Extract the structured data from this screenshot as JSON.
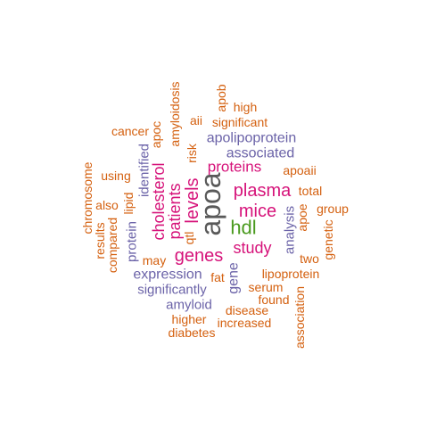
{
  "colors": {
    "gray": "#595959",
    "green": "#4a9a1e",
    "magenta": "#d6137a",
    "purple": "#6b63a8",
    "orange": "#d4600f"
  },
  "words": [
    {
      "text": "apoa",
      "color": "gray"
    },
    {
      "text": "hdl",
      "color": "green"
    },
    {
      "text": "mice",
      "color": "magenta"
    },
    {
      "text": "plasma",
      "color": "magenta"
    },
    {
      "text": "levels",
      "color": "magenta"
    },
    {
      "text": "genes",
      "color": "magenta"
    },
    {
      "text": "study",
      "color": "magenta"
    },
    {
      "text": "patients",
      "color": "magenta"
    },
    {
      "text": "cholesterol",
      "color": "magenta"
    },
    {
      "text": "proteins",
      "color": "magenta"
    },
    {
      "text": "apolipoprotein",
      "color": "purple"
    },
    {
      "text": "associated",
      "color": "purple"
    },
    {
      "text": "expression",
      "color": "purple"
    },
    {
      "text": "gene",
      "color": "purple"
    },
    {
      "text": "identified",
      "color": "purple"
    },
    {
      "text": "significantly",
      "color": "purple"
    },
    {
      "text": "amyloid",
      "color": "purple"
    },
    {
      "text": "protein",
      "color": "purple"
    },
    {
      "text": "analysis",
      "color": "purple"
    },
    {
      "text": "apoaii",
      "color": "orange"
    },
    {
      "text": "lipoprotein",
      "color": "orange"
    },
    {
      "text": "serum",
      "color": "orange"
    },
    {
      "text": "disease",
      "color": "orange"
    },
    {
      "text": "amyloidosis",
      "color": "orange"
    },
    {
      "text": "significant",
      "color": "orange"
    },
    {
      "text": "increased",
      "color": "orange"
    },
    {
      "text": "higher",
      "color": "orange"
    },
    {
      "text": "diabetes",
      "color": "orange"
    },
    {
      "text": "association",
      "color": "orange"
    },
    {
      "text": "genetic",
      "color": "orange"
    },
    {
      "text": "group",
      "color": "orange"
    },
    {
      "text": "total",
      "color": "orange"
    },
    {
      "text": "apoe",
      "color": "orange"
    },
    {
      "text": "two",
      "color": "orange"
    },
    {
      "text": "found",
      "color": "orange"
    },
    {
      "text": "fat",
      "color": "orange"
    },
    {
      "text": "may",
      "color": "orange"
    },
    {
      "text": "compared",
      "color": "orange"
    },
    {
      "text": "results",
      "color": "orange"
    },
    {
      "text": "chromosome",
      "color": "orange"
    },
    {
      "text": "also",
      "color": "orange"
    },
    {
      "text": "using",
      "color": "orange"
    },
    {
      "text": "lipid",
      "color": "orange"
    },
    {
      "text": "cancer",
      "color": "orange"
    },
    {
      "text": "apoc",
      "color": "orange"
    },
    {
      "text": "aii",
      "color": "orange"
    },
    {
      "text": "apob",
      "color": "orange"
    },
    {
      "text": "high",
      "color": "orange"
    },
    {
      "text": "risk",
      "color": "orange"
    },
    {
      "text": "qtl",
      "color": "orange"
    }
  ]
}
